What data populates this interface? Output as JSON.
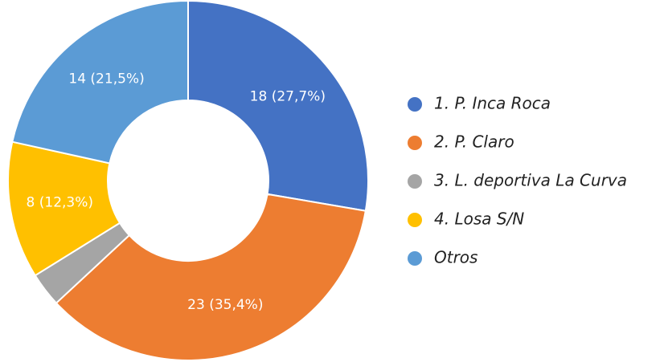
{
  "chart_data": {
    "type": "donut",
    "categories": [
      "1. P. Inca Roca",
      "2. P. Claro",
      "3. L. deportiva La Curva",
      "4. Losa S/N",
      "Otros"
    ],
    "values": [
      18,
      23,
      2,
      8,
      14
    ],
    "value_labels": [
      "18 (27,7%)",
      "23 (35,4%)",
      null,
      "8 (12,3%)",
      "14 (21,5%)"
    ],
    "colors": [
      "#4472c4",
      "#ed7d31",
      "#a5a5a5",
      "#ffc000",
      "#5b9bd5"
    ],
    "legend": "right"
  }
}
